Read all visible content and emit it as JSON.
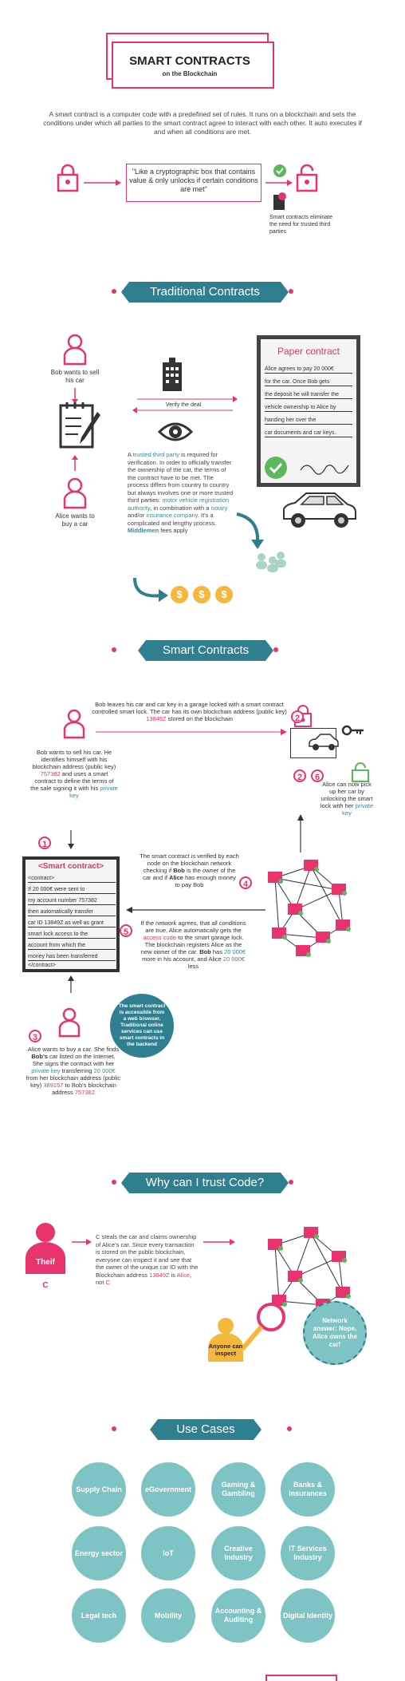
{
  "header": {
    "title": "SMART CONTRACTS",
    "subtitle": "on the Blockchain",
    "intro": "A smart contract is a computer code with a predefined set of rules. It runs on a blockchain and sets the conditions under which all parties to the smart contract agree to interact with each other.  It auto executes if and when all conditions are met.",
    "quote": "\"Like a cryptographic box that contains value & only unlocks if certain conditions are met\"",
    "eliminate": "Smart contracts eliminate the need for trusted third parties"
  },
  "traditional": {
    "ribbon": "Traditional Contracts",
    "bob": "Bob wants to sell his car",
    "alice": "Alice wants to buy a car",
    "verify": "Verify the deal",
    "paper_title": "Paper contract",
    "paper_lines": [
      "Alice agrees to pay 20 000€",
      "for the car. Once Bob gets",
      "the deposit he will transfer the",
      "vehicle ownership to Alice by",
      "handing her over the",
      "car documents and car keys."
    ],
    "desc_a": "A",
    "trusted": "trusted third party",
    "desc_b": "is required for verification. In order to officially transfer the ownership of the car, the terms of the contract have to be met. The process differs from country to country but always involves one or more trusted third parties:",
    "motor": "motor vehicle registration authority",
    "desc_c": ", in combination with a",
    "notary": "notary",
    "desc_d": "and/or",
    "insurance": "insurance company",
    "desc_e": ". It's a complicated and lengthy process.",
    "middlemen": "Middlemen",
    "desc_f": "fees apply",
    "coins": [
      "$",
      "$",
      "$"
    ]
  },
  "smart": {
    "ribbon": "Smart Contracts",
    "top": "Bob leaves his car and car key in a garage locked with a smart contract controlled smart lock.  The car has its own blockchain address (public key)",
    "top_key": "13849Z",
    "top_end": "stored on the blockchain",
    "bob_a": "Bob wants to sell his car. He identifies himself with his blockchain address (public key)",
    "bob_key": "757382",
    "bob_b": "and uses a smart contract to define the terms of the sale signing it with his",
    "bob_priv": "private key",
    "contract_title": "<Smart contract>",
    "contract_lines": [
      "<contract>",
      "If 20 000€ were sent to",
      "my account number 757382",
      "then automatically transfer",
      "car ID 13849Z as well as grant",
      "smart lock access to the",
      "account from which the",
      "money has been transferred",
      "</contract>"
    ],
    "verify_a": "The smart contract is verified by each node on the blockchain network checking if",
    "verify_bob": "Bob",
    "verify_b": "is the owner of the car and if",
    "verify_alice": "Alice",
    "verify_c": "has enough money to pay Bob",
    "agree_a": "If the network agrees, that all conditions are true, Alice automatically gets the",
    "agree_access": "access code",
    "agree_b": "to the smart garage lock. The blockchain registers Alice as the new owner of the car.",
    "agree_bob": "Bob",
    "agree_c": "has",
    "agree_amount": "20 000€",
    "agree_d": "more in his account, and Alice",
    "agree_amount2": "20 000€",
    "agree_e": "less",
    "pickup_a": "Alice can now pick up her car by unlocking the smart lock with her",
    "pickup_priv": "private key",
    "web": "The smart contract is accessible from a web browser. Traditional online services can use smart contracts in the backend",
    "alice_a": "Alice wants to buy a car. She finds",
    "alice_bob": "Bob's",
    "alice_b": "car listed on the Internet. She signs the contract with her",
    "alice_priv": "private key",
    "alice_c": "transferring",
    "alice_amount": "20 000€",
    "alice_d": "from her blockchain address (public key)",
    "alice_key": "389157",
    "alice_e": "to Bob's blockchain address",
    "alice_key2": "757382",
    "nums": [
      "1",
      "2",
      "2",
      "3",
      "4",
      "5",
      "6"
    ]
  },
  "trust": {
    "ribbon": "Why can I trust Code?",
    "thief": "Theif",
    "thief_c": "C",
    "text_a": "C steals the car and claims ownership of Alice's car. Since every transaction is stored on the public blockchain, everyone can inspect it and see that the owner of the unique car ID with the Blockchain address",
    "text_key": "13849Z",
    "text_b": "is",
    "text_alice": "Alice",
    "text_c": ", not",
    "text_cc": "C",
    "anyone": "Anyone can inspect",
    "answer": "Network answer: Nope, Alice owns the car!"
  },
  "use_cases": {
    "ribbon": "Use Cases",
    "items": [
      "Supply Chain",
      "eGovernment",
      "Gaming & Gambling",
      "Banks & Insurances",
      "Energy sector",
      "IoT",
      "Creative Industry",
      "IT Services Industry",
      "Legal tech",
      "Mobility",
      "Accounting & Auditing",
      "Digital Identity"
    ]
  },
  "colors": {
    "accent": "#e8336d",
    "teal": "#2f7f91",
    "mint": "#7fc4c4",
    "gold": "#f5b83c",
    "green": "#5cb85c"
  }
}
